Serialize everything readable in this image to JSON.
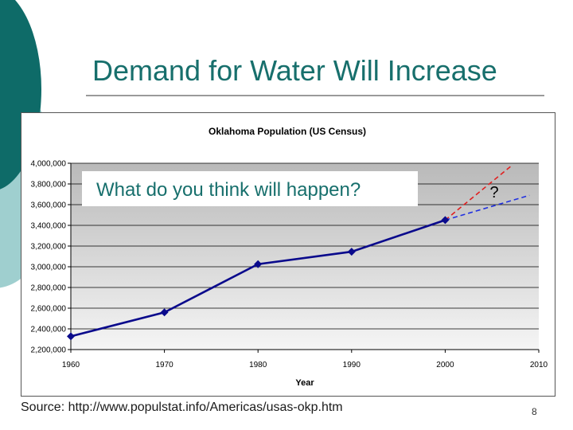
{
  "slide": {
    "title": "Demand for Water Will Increase",
    "callout": "What do you think will happen?",
    "source": "Source: http://www.populstat.info/Americas/usas-okp.htm",
    "page_number": "8"
  },
  "colors": {
    "accent_dark": "#0e6b68",
    "accent_light": "#9fcfcf",
    "series": "#0a0a8c",
    "projection_high": "#e02020",
    "projection_low": "#2030e0"
  },
  "chart_data": {
    "type": "line",
    "title": "Oklahoma Population (US Census)",
    "xlabel": "Year",
    "ylabel": "",
    "xlim": [
      1960,
      2010
    ],
    "ylim": [
      2200000,
      4000000
    ],
    "x_ticks": [
      1960,
      1970,
      1980,
      1990,
      2000,
      2010
    ],
    "x_tick_labels": [
      "1960",
      "1970",
      "1980",
      "1990",
      "2000",
      "2010"
    ],
    "y_ticks": [
      2200000,
      2400000,
      2600000,
      2800000,
      3000000,
      3200000,
      3400000,
      3600000,
      3800000,
      4000000
    ],
    "y_tick_labels": [
      "2,200,000",
      "2,400,000",
      "2,600,000",
      "2,800,000",
      "3,000,000",
      "3,200,000",
      "3,400,000",
      "3,600,000",
      "3,800,000",
      "4,000,000"
    ],
    "grid": true,
    "series": [
      {
        "name": "Oklahoma Population",
        "x": [
          1960,
          1970,
          1980,
          1990,
          2000
        ],
        "values": [
          2328284,
          2559229,
          3025290,
          3145585,
          3450654
        ]
      }
    ],
    "projections": [
      {
        "name": "high-projection",
        "x": [
          2000,
          2007
        ],
        "values": [
          3450654,
          3970000
        ]
      },
      {
        "name": "low-projection",
        "x": [
          2000,
          2009
        ],
        "values": [
          3450654,
          3690000
        ]
      }
    ],
    "annotation": "?"
  }
}
